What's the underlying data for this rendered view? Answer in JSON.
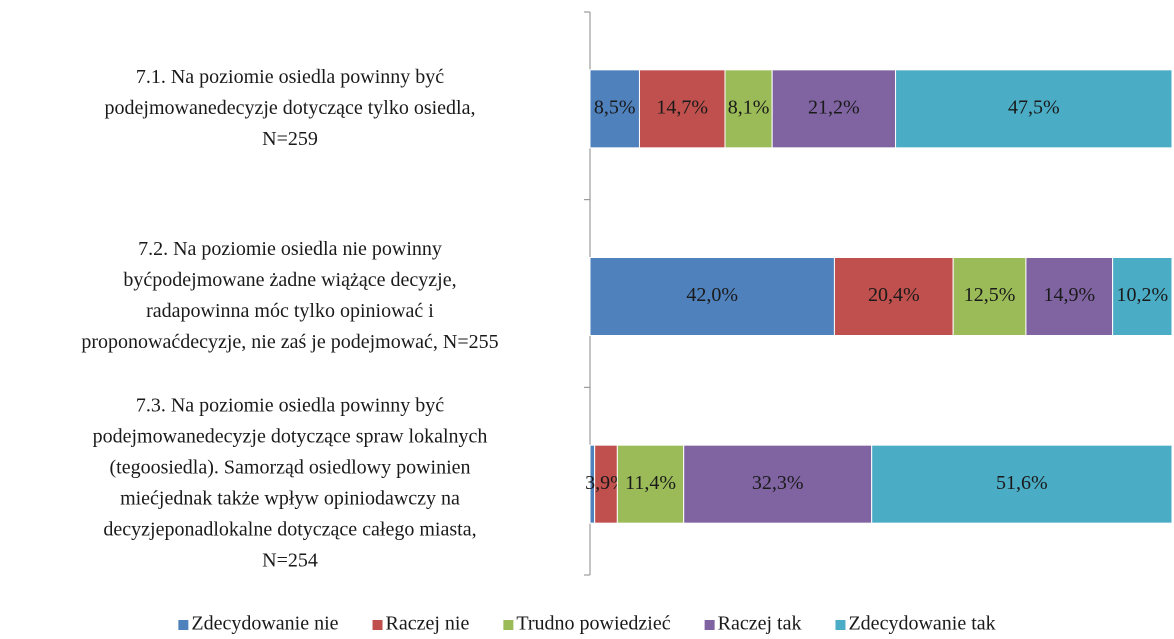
{
  "chart_data": {
    "type": "stacked_bar_horizontal",
    "categories": [
      "7.1. Na poziomie osiedla powinny być\npodejmowanedecyzje dotyczące tylko osiedla,\nN=259",
      "7.2. Na poziomie osiedla nie powinny\nbyćpodejmowane żadne wiążące decyzje,\nradapowinna móc tylko opiniować i\nproponowaćdecyzje, nie zaś je podejmować, N=255",
      "7.3. Na poziomie osiedla powinny być\npodejmowanedecyzje dotyczące spraw lokalnych\n(tegoosiedla). Samorząd osiedlowy powinien\nmiećjednak także wpływ opiniodawczy na\ndecyzjeponadlokalne dotyczące całego miasta,\nN=254"
    ],
    "series": [
      {
        "name": "Zdecydowanie nie",
        "color": "#4f81bd",
        "values": [
          8.5,
          42.0,
          0.8
        ],
        "value_labels": [
          "8,5%",
          "42,0%",
          null
        ]
      },
      {
        "name": "Raczej nie",
        "color": "#c0504d",
        "values": [
          14.7,
          20.4,
          3.9
        ],
        "value_labels": [
          "14,7%",
          "20,4%",
          "3,9%"
        ]
      },
      {
        "name": "Trudno powiedzieć",
        "color": "#9bbb59",
        "values": [
          8.1,
          12.5,
          11.4
        ],
        "value_labels": [
          "8,1%",
          "12,5%",
          "11,4%"
        ]
      },
      {
        "name": "Raczej tak",
        "color": "#8064a2",
        "values": [
          21.2,
          14.9,
          32.3
        ],
        "value_labels": [
          "21,2%",
          "14,9%",
          "32,3%"
        ]
      },
      {
        "name": "Zdecydowanie tak",
        "color": "#4bacc6",
        "values": [
          47.5,
          10.2,
          51.6
        ],
        "value_labels": [
          "47,5%",
          "10,2%",
          "51,6%"
        ]
      }
    ],
    "xlim": [
      0,
      100
    ],
    "legend": "bottom"
  }
}
